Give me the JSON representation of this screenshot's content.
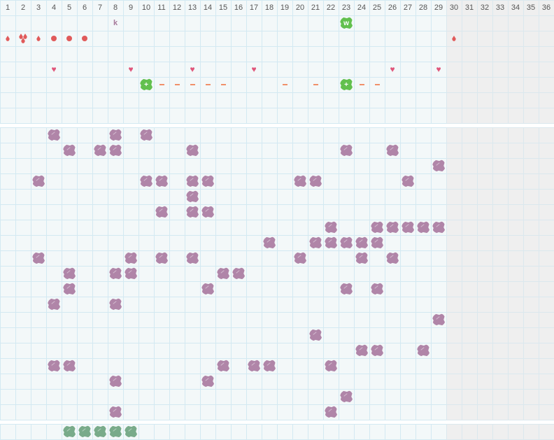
{
  "columns": [
    "1",
    "2",
    "3",
    "4",
    "5",
    "6",
    "7",
    "8",
    "9",
    "10",
    "11",
    "12",
    "13",
    "14",
    "15",
    "16",
    "17",
    "18",
    "19",
    "20",
    "21",
    "22",
    "23",
    "24",
    "25",
    "26",
    "27",
    "28",
    "29",
    "30",
    "31",
    "32",
    "33",
    "34",
    "35",
    "36"
  ],
  "shaded_from_column": 30,
  "colors": {
    "grid_bg": "#f3f8f9",
    "grid_line": "#d3e9f2",
    "shaded": "#efefef",
    "purple": "#b085a8",
    "green": "#62c04e",
    "dark_green": "#79ab8a",
    "red": "#e05a5a",
    "heart": "#e0557a",
    "dash": "#f0906a"
  },
  "top_rows": [
    {
      "markers": [
        {
          "col": 8,
          "type": "letter",
          "text": "k"
        },
        {
          "col": 23,
          "type": "green-blob",
          "text": "w"
        }
      ]
    },
    {
      "markers": [
        {
          "col": 1,
          "type": "drop"
        },
        {
          "col": 2,
          "type": "drops3"
        },
        {
          "col": 3,
          "type": "drop"
        },
        {
          "col": 4,
          "type": "dot"
        },
        {
          "col": 5,
          "type": "dot"
        },
        {
          "col": 6,
          "type": "dot"
        },
        {
          "col": 30,
          "type": "drop"
        }
      ]
    },
    {
      "markers": []
    },
    {
      "markers": [
        {
          "col": 4,
          "type": "heart"
        },
        {
          "col": 9,
          "type": "heart"
        },
        {
          "col": 13,
          "type": "heart"
        },
        {
          "col": 17,
          "type": "heart"
        },
        {
          "col": 26,
          "type": "heart"
        },
        {
          "col": 29,
          "type": "heart"
        }
      ]
    },
    {
      "markers": [
        {
          "col": 10,
          "type": "green-blob",
          "text": "+"
        },
        {
          "col": 11,
          "type": "dash"
        },
        {
          "col": 12,
          "type": "dash"
        },
        {
          "col": 13,
          "type": "dash"
        },
        {
          "col": 14,
          "type": "dash"
        },
        {
          "col": 15,
          "type": "dash"
        },
        {
          "col": 19,
          "type": "dash"
        },
        {
          "col": 21,
          "type": "dash"
        },
        {
          "col": 23,
          "type": "green-blob",
          "text": "+"
        },
        {
          "col": 24,
          "type": "dash"
        },
        {
          "col": 25,
          "type": "dash"
        }
      ]
    },
    {
      "markers": []
    },
    {
      "markers": []
    }
  ],
  "purple_rows": [
    [
      4,
      8,
      10
    ],
    [
      5,
      7,
      8,
      13,
      23,
      26
    ],
    [
      29
    ],
    [
      3,
      10,
      11,
      13,
      14,
      20,
      21,
      27
    ],
    [
      13
    ],
    [
      11,
      13,
      14
    ],
    [
      22,
      25,
      26,
      27,
      28,
      29
    ],
    [
      18,
      21,
      22,
      23,
      24,
      25
    ],
    [
      3,
      9,
      11,
      13,
      20,
      24,
      26
    ],
    [
      5,
      8,
      9,
      15,
      16
    ],
    [
      5,
      14,
      23,
      25
    ],
    [
      4,
      8
    ],
    [
      29
    ],
    [
      21
    ],
    [
      24,
      25,
      28
    ],
    [
      4,
      5,
      15,
      17,
      18,
      22
    ],
    [
      8,
      14
    ],
    [
      23
    ],
    [
      8,
      22
    ]
  ],
  "bottom_row": [
    5,
    6,
    7,
    8,
    9
  ]
}
